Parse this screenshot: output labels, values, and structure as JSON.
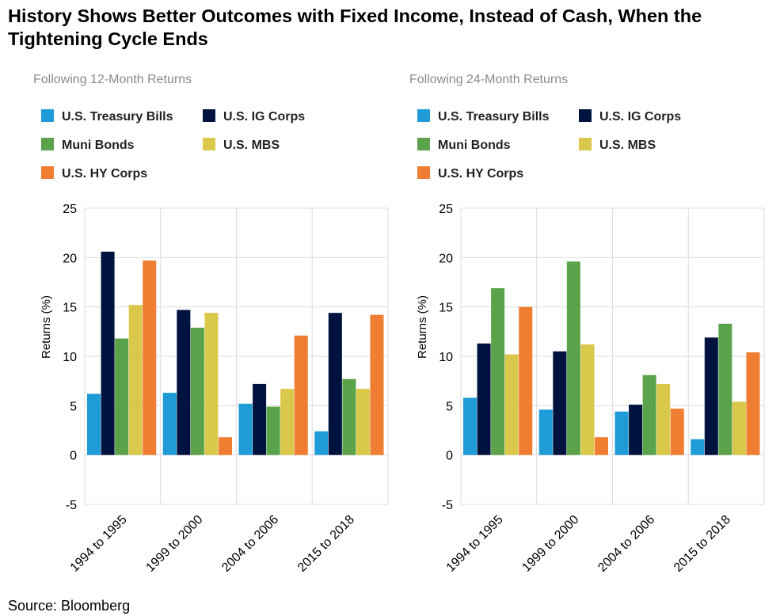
{
  "title_line1": "History Shows Better Outcomes with Fixed Income, Instead of Cash, When the",
  "title_line2": "Tightening Cycle Ends",
  "source": "Source: Bloomberg",
  "colors": {
    "U.S. Treasury Bills": "#1f9bd7",
    "U.S. IG Corps": "#00133f",
    "Muni Bonds": "#5aa34a",
    "U.S. MBS": "#d9c84a",
    "U.S. HY Corps": "#ef7d32"
  },
  "chart_data": [
    {
      "type": "bar",
      "subtitle": "Following 12-Month Returns",
      "ylabel": "Returns (%)",
      "ylim": [
        -5,
        25
      ],
      "yticks": [
        25,
        20,
        15,
        10,
        5,
        0,
        -5
      ],
      "grid": true,
      "legend": "top",
      "categories": [
        "1994 to 1995",
        "1999 to 2000",
        "2004 to 2006",
        "2015 to 2018"
      ],
      "series": [
        {
          "name": "U.S. Treasury Bills",
          "values": [
            6.2,
            6.3,
            5.2,
            2.4
          ]
        },
        {
          "name": "U.S. IG Corps",
          "values": [
            20.6,
            14.7,
            7.2,
            14.4
          ]
        },
        {
          "name": "Muni Bonds",
          "values": [
            11.8,
            12.9,
            4.9,
            7.7
          ]
        },
        {
          "name": "U.S. MBS",
          "values": [
            15.2,
            14.4,
            6.7,
            6.7
          ]
        },
        {
          "name": "U.S. HY Corps",
          "values": [
            19.7,
            1.8,
            12.1,
            14.2
          ]
        }
      ]
    },
    {
      "type": "bar",
      "subtitle": "Following 24-Month Returns",
      "ylabel": "Returns (%)",
      "ylim": [
        -5,
        25
      ],
      "yticks": [
        25,
        20,
        15,
        10,
        5,
        0,
        -5
      ],
      "grid": true,
      "legend": "top",
      "categories": [
        "1994 to 1995",
        "1999 to 2000",
        "2004 to 2006",
        "2015 to 2018"
      ],
      "series": [
        {
          "name": "U.S. Treasury Bills",
          "values": [
            5.8,
            4.6,
            4.4,
            1.6
          ]
        },
        {
          "name": "U.S. IG Corps",
          "values": [
            11.3,
            10.5,
            5.1,
            11.9
          ]
        },
        {
          "name": "Muni Bonds",
          "values": [
            16.9,
            19.6,
            8.1,
            13.3
          ]
        },
        {
          "name": "U.S. MBS",
          "values": [
            10.2,
            11.2,
            7.2,
            5.4
          ]
        },
        {
          "name": "U.S. HY Corps",
          "values": [
            15.0,
            1.8,
            4.7,
            10.4
          ]
        }
      ]
    }
  ]
}
